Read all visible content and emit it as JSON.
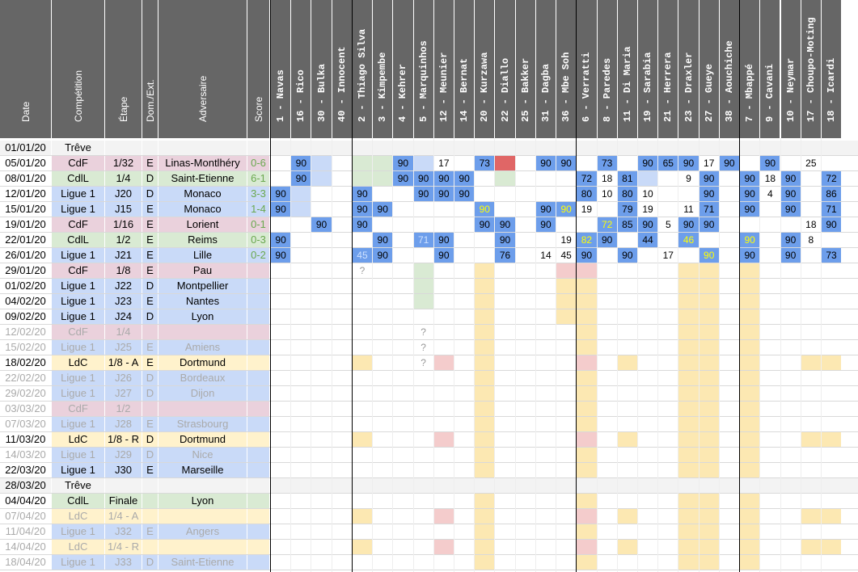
{
  "colors": {
    "header_bg": "#666666",
    "ligue1": "#c9daf8",
    "cdf": "#ead1dc",
    "cdl": "#d9ead3",
    "ldc": "#fff2cc",
    "treve": "#f3f3f3",
    "played_blue": "#6d9eeb",
    "played_green": "#93c47d",
    "played_yellow": "#fce8b2",
    "played_pink": "#f4cccc",
    "played_red": "#e06666",
    "score_green": "#6aa84f",
    "highlight_text": "#ffff00"
  },
  "headers": {
    "date": "Date",
    "competition": "Compétition",
    "etape": "Étape",
    "domext": "Dom./Ext.",
    "adversaire": "Adversaire",
    "score": "Score"
  },
  "players": [
    "1 - Navas",
    "16 - Rico",
    "30 - Bulka",
    "40 - Innocent",
    "2 - Thiago Silva",
    "3 - Kimpembe",
    "4 - Kehrer",
    "5 - Marquinhos",
    "12 - Meunier",
    "14 - Bernat",
    "20 - Kurzawa",
    "22 - Diallo",
    "25 - Bakker",
    "31 - Dagba",
    "36 - Mbe Soh",
    "6 - Verratti",
    "8 - Paredes",
    "11 - Di Maria",
    "19 - Sarabia",
    "21 - Herrera",
    "23 - Draxler",
    "27 - Gueye",
    "38 - Aouchiche",
    "7 - Mbappé",
    "9 - Cavani",
    "10 - Neymar",
    "17 - Choupo-Moting",
    "18 - Icardi"
  ],
  "matches": [
    {
      "date": "01/01/20",
      "comp": "Trêve",
      "etape": "",
      "domext": "",
      "adv": "",
      "score": "",
      "type": "treve",
      "past": true
    },
    {
      "date": "05/01/20",
      "comp": "CdF",
      "etape": "1/32",
      "domext": "E",
      "adv": "Linas-Montlhéry",
      "score": "0-6",
      "type": "cdf",
      "past": true
    },
    {
      "date": "08/01/20",
      "comp": "CdlL",
      "etape": "1/4",
      "domext": "D",
      "adv": "Saint-Etienne",
      "score": "6-1",
      "type": "cdl",
      "past": true
    },
    {
      "date": "12/01/20",
      "comp": "Ligue 1",
      "etape": "J20",
      "domext": "D",
      "adv": "Monaco",
      "score": "3-3",
      "type": "ligue1",
      "past": true
    },
    {
      "date": "15/01/20",
      "comp": "Ligue 1",
      "etape": "J15",
      "domext": "E",
      "adv": "Monaco",
      "score": "1-4",
      "type": "ligue1",
      "past": true
    },
    {
      "date": "19/01/20",
      "comp": "CdF",
      "etape": "1/16",
      "domext": "E",
      "adv": "Lorient",
      "score": "0-1",
      "type": "cdf",
      "past": true
    },
    {
      "date": "22/01/20",
      "comp": "CdlL",
      "etape": "1/2",
      "domext": "E",
      "adv": "Reims",
      "score": "0-3",
      "type": "cdl",
      "past": true
    },
    {
      "date": "26/01/20",
      "comp": "Ligue 1",
      "etape": "J21",
      "domext": "E",
      "adv": "Lille",
      "score": "0-2",
      "type": "ligue1",
      "past": true
    },
    {
      "date": "29/01/20",
      "comp": "CdF",
      "etape": "1/8",
      "domext": "E",
      "adv": "Pau",
      "score": "",
      "type": "cdf",
      "past": true
    },
    {
      "date": "01/02/20",
      "comp": "Ligue 1",
      "etape": "J22",
      "domext": "D",
      "adv": "Montpellier",
      "score": "",
      "type": "ligue1",
      "past": true
    },
    {
      "date": "04/02/20",
      "comp": "Ligue 1",
      "etape": "J23",
      "domext": "E",
      "adv": "Nantes",
      "score": "",
      "type": "ligue1",
      "past": true
    },
    {
      "date": "09/02/20",
      "comp": "Ligue 1",
      "etape": "J24",
      "domext": "D",
      "adv": "Lyon",
      "score": "",
      "type": "ligue1",
      "past": true
    },
    {
      "date": "12/02/20",
      "comp": "CdF",
      "etape": "1/4",
      "domext": "",
      "adv": "",
      "score": "",
      "type": "cdf",
      "past": false
    },
    {
      "date": "15/02/20",
      "comp": "Ligue 1",
      "etape": "J25",
      "domext": "E",
      "adv": "Amiens",
      "score": "",
      "type": "ligue1",
      "past": false
    },
    {
      "date": "18/02/20",
      "comp": "LdC",
      "etape": "1/8 - A",
      "domext": "E",
      "adv": "Dortmund",
      "score": "",
      "type": "ldc",
      "past": true
    },
    {
      "date": "22/02/20",
      "comp": "Ligue 1",
      "etape": "J26",
      "domext": "D",
      "adv": "Bordeaux",
      "score": "",
      "type": "ligue1",
      "past": false
    },
    {
      "date": "29/02/20",
      "comp": "Ligue 1",
      "etape": "J27",
      "domext": "D",
      "adv": "Dijon",
      "score": "",
      "type": "ligue1",
      "past": false
    },
    {
      "date": "03/03/20",
      "comp": "CdF",
      "etape": "1/2",
      "domext": "",
      "adv": "",
      "score": "",
      "type": "cdf",
      "past": false
    },
    {
      "date": "07/03/20",
      "comp": "Ligue 1",
      "etape": "J28",
      "domext": "E",
      "adv": "Strasbourg",
      "score": "",
      "type": "ligue1",
      "past": false
    },
    {
      "date": "11/03/20",
      "comp": "LdC",
      "etape": "1/8 - R",
      "domext": "D",
      "adv": "Dortmund",
      "score": "",
      "type": "ldc",
      "past": true
    },
    {
      "date": "14/03/20",
      "comp": "Ligue 1",
      "etape": "J29",
      "domext": "D",
      "adv": "Nice",
      "score": "",
      "type": "ligue1",
      "past": false
    },
    {
      "date": "22/03/20",
      "comp": "Ligue 1",
      "etape": "J30",
      "domext": "E",
      "adv": "Marseille",
      "score": "",
      "type": "ligue1",
      "past": true
    },
    {
      "date": "28/03/20",
      "comp": "Trêve",
      "etape": "",
      "domext": "",
      "adv": "",
      "score": "",
      "type": "treve",
      "past": true
    },
    {
      "date": "04/04/20",
      "comp": "CdlL",
      "etape": "Finale",
      "domext": "",
      "adv": "Lyon",
      "score": "",
      "type": "cdl",
      "past": true
    },
    {
      "date": "07/04/20",
      "comp": "LdC",
      "etape": "1/4 - A",
      "domext": "",
      "adv": "",
      "score": "",
      "type": "ldc",
      "past": false
    },
    {
      "date": "11/04/20",
      "comp": "Ligue 1",
      "etape": "J32",
      "domext": "E",
      "adv": "Angers",
      "score": "",
      "type": "ligue1",
      "past": false
    },
    {
      "date": "14/04/20",
      "comp": "LdC",
      "etape": "1/4 - R",
      "domext": "",
      "adv": "",
      "score": "",
      "type": "ldc",
      "past": false
    },
    {
      "date": "18/04/20",
      "comp": "Ligue 1",
      "etape": "J33",
      "domext": "D",
      "adv": "Saint-Etienne",
      "score": "",
      "type": "ligue1",
      "past": false
    }
  ],
  "participation": [
    {
      "row": 1,
      "col": 1,
      "v": "90",
      "bg": "blue"
    },
    {
      "row": 1,
      "col": 2,
      "v": "",
      "bg": "ligue1"
    },
    {
      "row": 1,
      "col": 4,
      "v": "",
      "bg": "cdl"
    },
    {
      "row": 1,
      "col": 5,
      "v": "",
      "bg": "cdl"
    },
    {
      "row": 1,
      "col": 6,
      "v": "90",
      "bg": "blue"
    },
    {
      "row": 1,
      "col": 7,
      "v": "",
      "bg": "ligue1"
    },
    {
      "row": 1,
      "col": 8,
      "v": "17",
      "bg": ""
    },
    {
      "row": 1,
      "col": 10,
      "v": "73",
      "bg": "blue"
    },
    {
      "row": 1,
      "col": 11,
      "v": "",
      "bg": "red"
    },
    {
      "row": 1,
      "col": 13,
      "v": "90",
      "bg": "blue"
    },
    {
      "row": 1,
      "col": 14,
      "v": "90",
      "bg": "blue"
    },
    {
      "row": 1,
      "col": 16,
      "v": "73",
      "bg": "blue"
    },
    {
      "row": 1,
      "col": 18,
      "v": "90",
      "bg": "blue"
    },
    {
      "row": 1,
      "col": 19,
      "v": "65",
      "bg": "blue"
    },
    {
      "row": 1,
      "col": 20,
      "v": "90",
      "bg": "blue"
    },
    {
      "row": 1,
      "col": 21,
      "v": "17",
      "bg": ""
    },
    {
      "row": 1,
      "col": 22,
      "v": "90",
      "bg": "blue"
    },
    {
      "row": 1,
      "col": 24,
      "v": "90",
      "bg": "blue"
    },
    {
      "row": 1,
      "col": 26,
      "v": "25",
      "bg": ""
    },
    {
      "row": 2,
      "col": 1,
      "v": "90",
      "bg": "blue"
    },
    {
      "row": 2,
      "col": 2,
      "v": "",
      "bg": "ligue1"
    },
    {
      "row": 2,
      "col": 4,
      "v": "",
      "bg": "cdl"
    },
    {
      "row": 2,
      "col": 5,
      "v": "",
      "bg": "cdl"
    },
    {
      "row": 2,
      "col": 6,
      "v": "90",
      "bg": "blue"
    },
    {
      "row": 2,
      "col": 7,
      "v": "90",
      "bg": "blue"
    },
    {
      "row": 2,
      "col": 8,
      "v": "90",
      "bg": "blue"
    },
    {
      "row": 2,
      "col": 9,
      "v": "90",
      "bg": "blue"
    },
    {
      "row": 2,
      "col": 11,
      "v": "",
      "bg": "cdl"
    },
    {
      "row": 2,
      "col": 15,
      "v": "72",
      "bg": "blue"
    },
    {
      "row": 2,
      "col": 16,
      "v": "18",
      "bg": ""
    },
    {
      "row": 2,
      "col": 17,
      "v": "81",
      "bg": "blue"
    },
    {
      "row": 2,
      "col": 18,
      "v": "",
      "bg": "ligue1"
    },
    {
      "row": 2,
      "col": 20,
      "v": "9",
      "bg": ""
    },
    {
      "row": 2,
      "col": 21,
      "v": "90",
      "bg": "blue"
    },
    {
      "row": 2,
      "col": 23,
      "v": "90",
      "bg": "blue"
    },
    {
      "row": 2,
      "col": 24,
      "v": "18",
      "bg": ""
    },
    {
      "row": 2,
      "col": 25,
      "v": "90",
      "bg": "blue"
    },
    {
      "row": 2,
      "col": 27,
      "v": "72",
      "bg": "blue"
    },
    {
      "row": 3,
      "col": 0,
      "v": "90",
      "bg": "blue"
    },
    {
      "row": 3,
      "col": 1,
      "v": "",
      "bg": "ligue1"
    },
    {
      "row": 3,
      "col": 4,
      "v": "90",
      "bg": "blue"
    },
    {
      "row": 3,
      "col": 7,
      "v": "90",
      "bg": "blue"
    },
    {
      "row": 3,
      "col": 8,
      "v": "90",
      "bg": "blue"
    },
    {
      "row": 3,
      "col": 9,
      "v": "90",
      "bg": "blue"
    },
    {
      "row": 3,
      "col": 15,
      "v": "80",
      "bg": "blue"
    },
    {
      "row": 3,
      "col": 16,
      "v": "10",
      "bg": ""
    },
    {
      "row": 3,
      "col": 17,
      "v": "80",
      "bg": "blue"
    },
    {
      "row": 3,
      "col": 18,
      "v": "10",
      "bg": ""
    },
    {
      "row": 3,
      "col": 21,
      "v": "90",
      "bg": "blue"
    },
    {
      "row": 3,
      "col": 23,
      "v": "90",
      "bg": "blue"
    },
    {
      "row": 3,
      "col": 24,
      "v": "4",
      "bg": ""
    },
    {
      "row": 3,
      "col": 25,
      "v": "90",
      "bg": "blue"
    },
    {
      "row": 3,
      "col": 27,
      "v": "86",
      "bg": "blue"
    },
    {
      "row": 4,
      "col": 0,
      "v": "90",
      "bg": "blue"
    },
    {
      "row": 4,
      "col": 1,
      "v": "",
      "bg": "ligue1"
    },
    {
      "row": 4,
      "col": 4,
      "v": "90",
      "bg": "blue"
    },
    {
      "row": 4,
      "col": 5,
      "v": "90",
      "bg": "blue"
    },
    {
      "row": 4,
      "col": 10,
      "v": "90",
      "bg": "yellowtext"
    },
    {
      "row": 4,
      "col": 13,
      "v": "90",
      "bg": "blue"
    },
    {
      "row": 4,
      "col": 14,
      "v": "90",
      "bg": "yellowtext"
    },
    {
      "row": 4,
      "col": 15,
      "v": "19",
      "bg": ""
    },
    {
      "row": 4,
      "col": 17,
      "v": "79",
      "bg": "blue"
    },
    {
      "row": 4,
      "col": 18,
      "v": "19",
      "bg": ""
    },
    {
      "row": 4,
      "col": 20,
      "v": "11",
      "bg": ""
    },
    {
      "row": 4,
      "col": 21,
      "v": "71",
      "bg": "blue"
    },
    {
      "row": 4,
      "col": 23,
      "v": "90",
      "bg": "blue"
    },
    {
      "row": 4,
      "col": 25,
      "v": "90",
      "bg": "blue"
    },
    {
      "row": 4,
      "col": 27,
      "v": "71",
      "bg": "blue"
    },
    {
      "row": 5,
      "col": 2,
      "v": "90",
      "bg": "blue"
    },
    {
      "row": 5,
      "col": 4,
      "v": "90",
      "bg": "blue"
    },
    {
      "row": 5,
      "col": 10,
      "v": "90",
      "bg": "blue"
    },
    {
      "row": 5,
      "col": 11,
      "v": "90",
      "bg": "blue"
    },
    {
      "row": 5,
      "col": 13,
      "v": "90",
      "bg": "blue"
    },
    {
      "row": 5,
      "col": 16,
      "v": "72",
      "bg": "yellowtext"
    },
    {
      "row": 5,
      "col": 17,
      "v": "85",
      "bg": "blue"
    },
    {
      "row": 5,
      "col": 18,
      "v": "90",
      "bg": "blue"
    },
    {
      "row": 5,
      "col": 19,
      "v": "5",
      "bg": ""
    },
    {
      "row": 5,
      "col": 20,
      "v": "90",
      "bg": "blue"
    },
    {
      "row": 5,
      "col": 21,
      "v": "90",
      "bg": "blue"
    },
    {
      "row": 5,
      "col": 26,
      "v": "18",
      "bg": ""
    },
    {
      "row": 5,
      "col": 27,
      "v": "90",
      "bg": "blue"
    },
    {
      "row": 6,
      "col": 0,
      "v": "90",
      "bg": "blue"
    },
    {
      "row": 6,
      "col": 5,
      "v": "90",
      "bg": "blue"
    },
    {
      "row": 6,
      "col": 7,
      "v": "71",
      "bg": "bluelight"
    },
    {
      "row": 6,
      "col": 8,
      "v": "90",
      "bg": "blue"
    },
    {
      "row": 6,
      "col": 11,
      "v": "90",
      "bg": "blue"
    },
    {
      "row": 6,
      "col": 14,
      "v": "19",
      "bg": ""
    },
    {
      "row": 6,
      "col": 15,
      "v": "82",
      "bg": "yellowtext"
    },
    {
      "row": 6,
      "col": 16,
      "v": "90",
      "bg": "blue"
    },
    {
      "row": 6,
      "col": 18,
      "v": "44",
      "bg": "blue"
    },
    {
      "row": 6,
      "col": 20,
      "v": "46",
      "bg": "yellowtext"
    },
    {
      "row": 6,
      "col": 23,
      "v": "90",
      "bg": "yellowtext"
    },
    {
      "row": 6,
      "col": 25,
      "v": "90",
      "bg": "blue"
    },
    {
      "row": 6,
      "col": 26,
      "v": "8",
      "bg": ""
    },
    {
      "row": 7,
      "col": 0,
      "v": "90",
      "bg": "blue"
    },
    {
      "row": 7,
      "col": 4,
      "v": "45",
      "bg": "bluelight"
    },
    {
      "row": 7,
      "col": 5,
      "v": "90",
      "bg": "blue"
    },
    {
      "row": 7,
      "col": 8,
      "v": "90",
      "bg": "blue"
    },
    {
      "row": 7,
      "col": 11,
      "v": "76",
      "bg": "blue"
    },
    {
      "row": 7,
      "col": 13,
      "v": "14",
      "bg": ""
    },
    {
      "row": 7,
      "col": 14,
      "v": "45",
      "bg": ""
    },
    {
      "row": 7,
      "col": 15,
      "v": "90",
      "bg": "blue"
    },
    {
      "row": 7,
      "col": 17,
      "v": "90",
      "bg": "blue"
    },
    {
      "row": 7,
      "col": 19,
      "v": "17",
      "bg": ""
    },
    {
      "row": 7,
      "col": 21,
      "v": "90",
      "bg": "yellowtext"
    },
    {
      "row": 7,
      "col": 23,
      "v": "90",
      "bg": "blue"
    },
    {
      "row": 7,
      "col": 25,
      "v": "90",
      "bg": "blue"
    },
    {
      "row": 7,
      "col": 27,
      "v": "73",
      "bg": "blue"
    },
    {
      "row": 8,
      "col": 4,
      "v": "?",
      "bg": ""
    },
    {
      "row": 12,
      "col": 7,
      "v": "?",
      "bg": ""
    },
    {
      "row": 13,
      "col": 7,
      "v": "?",
      "bg": ""
    },
    {
      "row": 14,
      "col": 7,
      "v": "?",
      "bg": ""
    }
  ]
}
